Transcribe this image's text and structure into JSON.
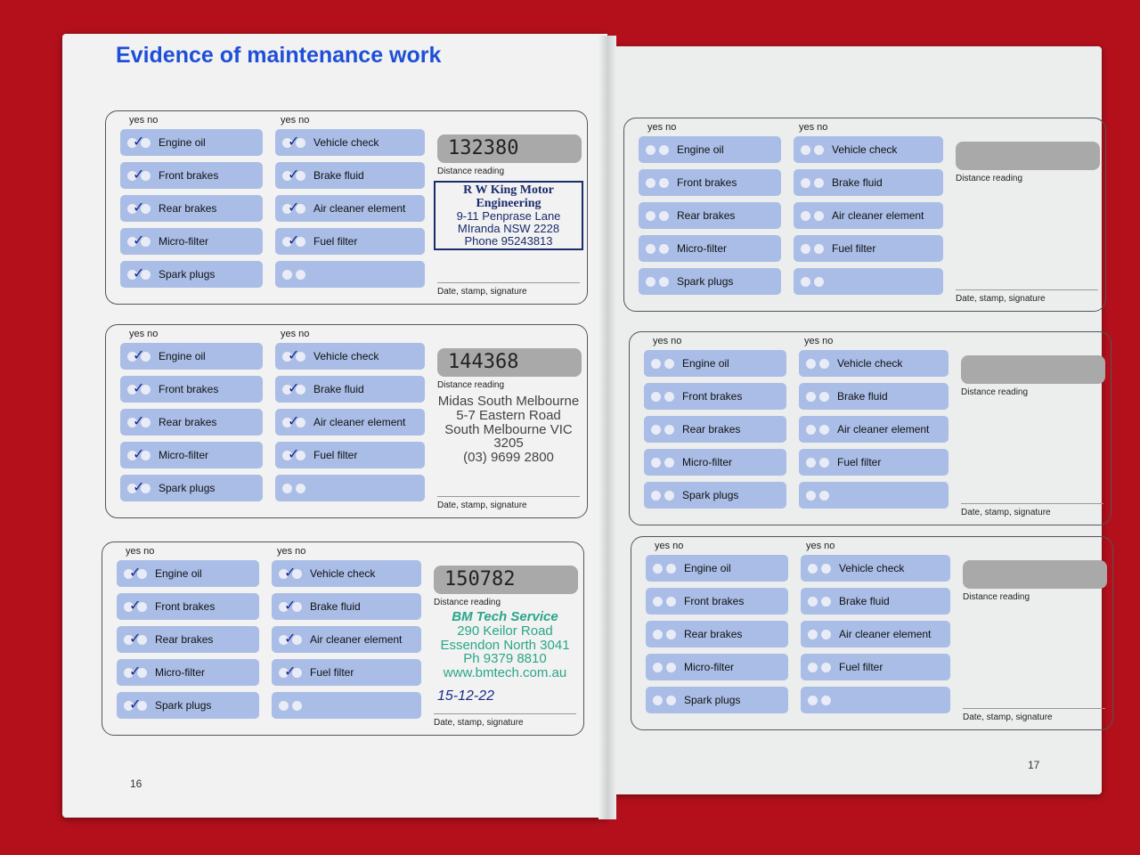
{
  "left_page": {
    "title": "Evidence of maintenance work",
    "page_number": "16"
  },
  "right_page": {
    "page_number": "17"
  },
  "labels": {
    "yes_no": "yes no",
    "distance": "Distance reading",
    "signature": "Date, stamp, signature"
  },
  "items_col1": [
    "Engine oil",
    "Front brakes",
    "Rear brakes",
    "Micro-filter",
    "Spark plugs"
  ],
  "items_col2": [
    "Vehicle check",
    "Brake fluid",
    "Air cleaner element",
    "Fuel filter",
    ""
  ],
  "entries": [
    {
      "distance": "132380",
      "ticked_yes": true,
      "stamp": {
        "lines": [
          "R W King Motor Engineering",
          "9-11 Penprase Lane",
          "MIranda NSW 2228",
          "Phone 95243813"
        ],
        "color": "#1c2a6e"
      }
    },
    {
      "distance": "144368",
      "ticked_yes": true,
      "stamp": {
        "lines": [
          "Midas South Melbourne",
          "5-7 Eastern Road",
          "South Melbourne VIC 3205",
          "(03) 9699 2800"
        ],
        "color": "#444444"
      }
    },
    {
      "distance": "150782",
      "ticked_yes": true,
      "date": "15-12-22",
      "stamp": {
        "lines": [
          "BM Tech Service",
          "290 Keilor Road",
          "Essendon North 3041",
          "Ph 9379 8810",
          "www.bmtech.com.au"
        ],
        "color": "#2aa68a"
      }
    },
    {
      "distance": "",
      "ticked_yes": false
    },
    {
      "distance": "",
      "ticked_yes": false
    },
    {
      "distance": "",
      "ticked_yes": false
    }
  ],
  "colors": {
    "title": "#1f4fd8",
    "item_fill": "#a9bde6",
    "background": "#b3101c"
  }
}
